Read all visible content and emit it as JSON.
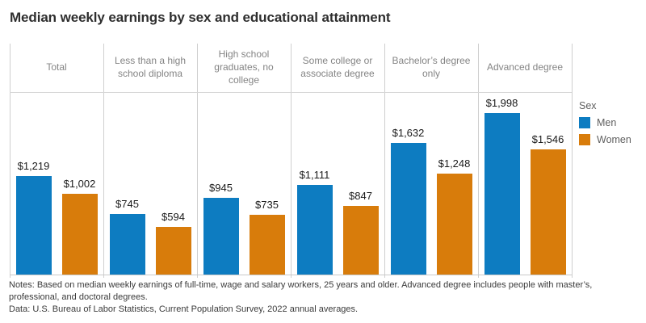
{
  "title": "Median weekly earnings by sex and educational attainment",
  "legend": {
    "title": "Sex",
    "items": [
      "Men",
      "Women"
    ]
  },
  "notes": {
    "line1": "Notes: Based on median weekly earnings of full-time, wage and salary workers, 25 years and older. Advanced degree includes people with master’s, professional, and doctoral degrees.",
    "line2": "Data: U.S. Bureau of Labor Statistics, Current Population Survey, 2022 annual averages."
  },
  "chart_data": {
    "type": "bar",
    "title": "Median weekly earnings by sex and educational attainment",
    "categories": [
      "Total",
      "Less than a high school diploma",
      "High school graduates, no college",
      "Some college or associate degree",
      "Bachelor’s degree only",
      "Advanced degree"
    ],
    "series": [
      {
        "name": "Men",
        "color": "#0d7cc1",
        "values": [
          1219,
          745,
          945,
          1111,
          1632,
          1998
        ],
        "value_labels": [
          "$1,219",
          "$745",
          "$945",
          "$1,111",
          "$1,632",
          "$1,998"
        ]
      },
      {
        "name": "Women",
        "color": "#d87c0b",
        "values": [
          1002,
          594,
          735,
          847,
          1248,
          1546
        ],
        "value_labels": [
          "$1,002",
          "$594",
          "$735",
          "$847",
          "$1,248",
          "$1,546"
        ]
      }
    ],
    "ylim": [
      0,
      2260
    ],
    "yaxis_visible": false,
    "grid": false,
    "legend_position": "right",
    "bar_label_format": "$#,###"
  }
}
